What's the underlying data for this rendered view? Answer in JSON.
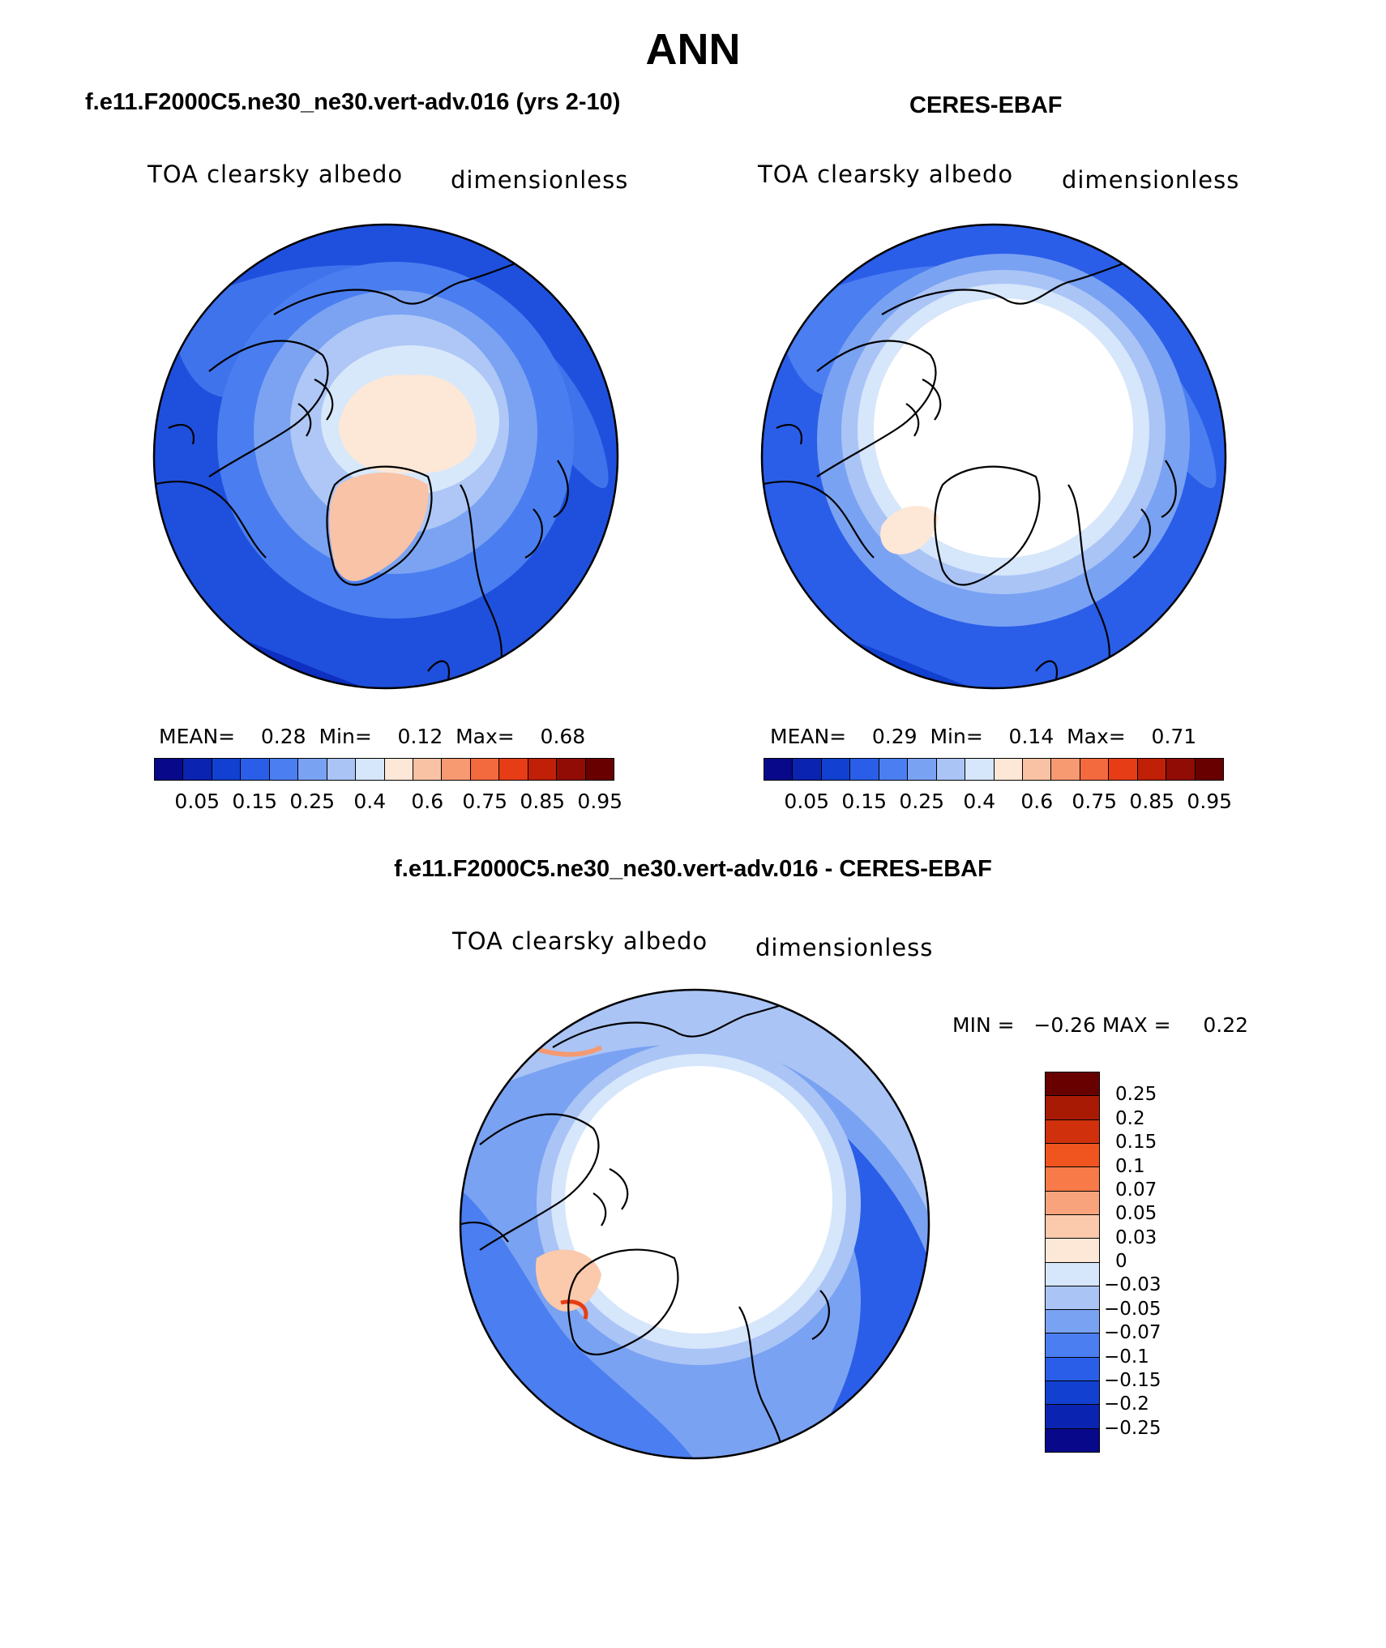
{
  "figure": {
    "title": "ANN",
    "diff_title": "f.e11.F2000C5.ne30_ne30.vert-adv.016 - CERES-EBAF"
  },
  "panels": [
    {
      "title": "f.e11.F2000C5.ne30_ne30.vert-adv.016 (yrs 2-10)",
      "variable": "TOA clearsky albedo",
      "units": "dimensionless",
      "stats": "MEAN=    0.28  Min=    0.12  Max=    0.68"
    },
    {
      "title": "CERES-EBAF",
      "variable": "TOA clearsky albedo",
      "units": "dimensionless",
      "stats": "MEAN=    0.29  Min=    0.14  Max=    0.71"
    },
    {
      "variable": "TOA clearsky albedo",
      "units": "dimensionless",
      "stats": "MIN =   −0.26 MAX =     0.22"
    }
  ],
  "colorbar_abs": {
    "colors": [
      "#08088a",
      "#0a23b0",
      "#1240d0",
      "#2a5ee8",
      "#4b7ef0",
      "#7aa2f2",
      "#aac4f6",
      "#d6e6fb",
      "#fde7d6",
      "#f9c2a4",
      "#f79a72",
      "#f46a3f",
      "#e63d16",
      "#c02008",
      "#900c04",
      "#680000"
    ],
    "tick_labels": [
      "0.05",
      "0.15",
      "0.25",
      "0.4",
      "0.6",
      "0.75",
      "0.85",
      "0.95"
    ]
  },
  "colorbar_diff": {
    "colors": [
      "#680000",
      "#a81a04",
      "#d0300c",
      "#f0541f",
      "#f77a48",
      "#f9a37c",
      "#fbc9ab",
      "#fde7d6",
      "#d6e6fb",
      "#aac4f6",
      "#7aa2f2",
      "#4b7ef0",
      "#2a5ee8",
      "#1240d0",
      "#0a23b0",
      "#08088a"
    ],
    "tick_labels": [
      "0.25",
      "0.2",
      "0.15",
      "0.1",
      "0.07",
      "0.05",
      "0.03",
      "0",
      "−0.03",
      "−0.05",
      "−0.07",
      "−0.1",
      "−0.15",
      "−0.2",
      "−0.25"
    ]
  },
  "chart_data": [
    {
      "type": "heatmap",
      "projection": "north polar stereographic",
      "title": "f.e11.F2000C5.ne30_ne30.vert-adv.016 (yrs 2-10)",
      "variable": "TOA clearsky albedo",
      "units": "dimensionless",
      "mean": 0.28,
      "min": 0.12,
      "max": 0.68,
      "levels": [
        0.05,
        0.1,
        0.15,
        0.2,
        0.25,
        0.3,
        0.35,
        0.4,
        0.5,
        0.6,
        0.7,
        0.75,
        0.8,
        0.85,
        0.9,
        0.95
      ]
    },
    {
      "type": "heatmap",
      "projection": "north polar stereographic",
      "title": "CERES-EBAF",
      "variable": "TOA clearsky albedo",
      "units": "dimensionless",
      "mean": 0.29,
      "min": 0.14,
      "max": 0.71,
      "levels": [
        0.05,
        0.1,
        0.15,
        0.2,
        0.25,
        0.3,
        0.35,
        0.4,
        0.5,
        0.6,
        0.7,
        0.75,
        0.8,
        0.85,
        0.9,
        0.95
      ]
    },
    {
      "type": "heatmap",
      "projection": "north polar stereographic",
      "title": "f.e11.F2000C5.ne30_ne30.vert-adv.016 - CERES-EBAF",
      "variable": "TOA clearsky albedo",
      "units": "dimensionless",
      "min": -0.26,
      "max": 0.22,
      "levels": [
        -0.25,
        -0.2,
        -0.15,
        -0.1,
        -0.07,
        -0.05,
        -0.03,
        0,
        0.03,
        0.05,
        0.07,
        0.1,
        0.15,
        0.2,
        0.25
      ]
    }
  ]
}
